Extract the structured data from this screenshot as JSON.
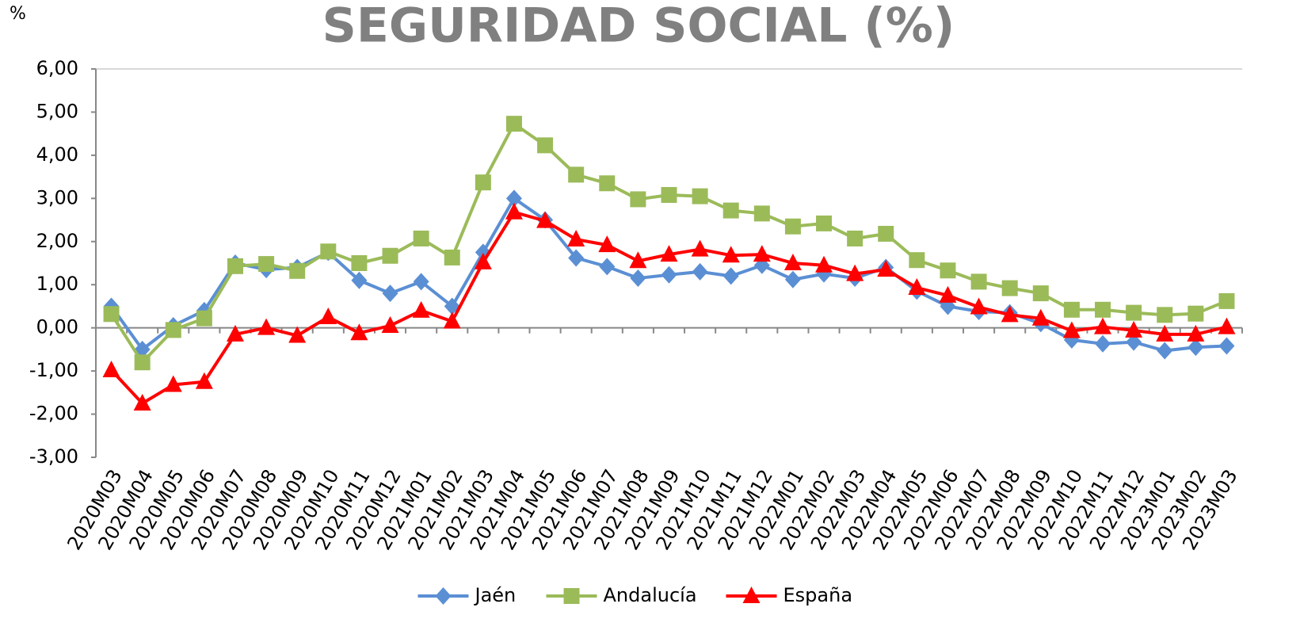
{
  "chart_data": {
    "type": "line",
    "title": "SEGURIDAD SOCIAL (%)",
    "y_label": "%",
    "categories": [
      "2020M03",
      "2020M04",
      "2020M05",
      "2020M06",
      "2020M07",
      "2020M08",
      "2020M09",
      "2020M10",
      "2020M11",
      "2020M12",
      "2021M01",
      "2021M02",
      "2021M03",
      "2021M04",
      "2021M05",
      "2021M06",
      "2021M07",
      "2021M08",
      "2021M09",
      "2021M10",
      "2021M11",
      "2021M12",
      "2022M01",
      "2022M02",
      "2022M03",
      "2022M04",
      "2022M05",
      "2022M06",
      "2022M07",
      "2022M08",
      "2022M09",
      "2022M10",
      "2022M11",
      "2022M12",
      "2023M01",
      "2023M02",
      "2023M03"
    ],
    "series": [
      {
        "name": "Jaén",
        "color": "#5b8fd4",
        "marker": "diamond",
        "values": [
          0.5,
          -0.5,
          0.05,
          0.4,
          1.5,
          1.35,
          1.4,
          1.75,
          1.1,
          0.8,
          1.07,
          0.5,
          1.75,
          3.0,
          2.5,
          1.62,
          1.42,
          1.15,
          1.23,
          1.3,
          1.2,
          1.45,
          1.12,
          1.25,
          1.15,
          1.4,
          0.85,
          0.5,
          0.38,
          0.35,
          0.1,
          -0.28,
          -0.37,
          -0.33,
          -0.53,
          -0.45,
          -0.42
        ]
      },
      {
        "name": "Andalucía",
        "color": "#9bbb59",
        "marker": "square",
        "values": [
          0.32,
          -0.8,
          -0.05,
          0.22,
          1.43,
          1.48,
          1.32,
          1.77,
          1.5,
          1.67,
          2.07,
          1.63,
          3.37,
          4.73,
          4.23,
          3.55,
          3.35,
          2.98,
          3.08,
          3.05,
          2.72,
          2.65,
          2.35,
          2.42,
          2.07,
          2.18,
          1.57,
          1.33,
          1.07,
          0.92,
          0.8,
          0.42,
          0.42,
          0.35,
          0.3,
          0.33,
          0.62
        ]
      },
      {
        "name": "España",
        "color": "#ff0000",
        "marker": "triangle",
        "values": [
          -0.98,
          -1.75,
          -1.32,
          -1.25,
          -0.15,
          0.0,
          -0.18,
          0.25,
          -0.12,
          0.05,
          0.4,
          0.15,
          1.52,
          2.68,
          2.48,
          2.05,
          1.92,
          1.55,
          1.7,
          1.82,
          1.68,
          1.7,
          1.5,
          1.45,
          1.25,
          1.35,
          0.93,
          0.75,
          0.48,
          0.3,
          0.22,
          -0.07,
          0.02,
          -0.06,
          -0.15,
          -0.15,
          0.02
        ]
      }
    ],
    "ylim": [
      -3,
      6
    ],
    "yticks": [
      {
        "value": -3,
        "label": "-3,00"
      },
      {
        "value": -2,
        "label": "-2,00"
      },
      {
        "value": -1,
        "label": "-1,00"
      },
      {
        "value": 0,
        "label": "0,00"
      },
      {
        "value": 1,
        "label": "1,00"
      },
      {
        "value": 2,
        "label": "2,00"
      },
      {
        "value": 3,
        "label": "3,00"
      },
      {
        "value": 4,
        "label": "4,00"
      },
      {
        "value": 5,
        "label": "5,00"
      },
      {
        "value": 6,
        "label": "6,00"
      }
    ],
    "grid": false,
    "legend": "bottom"
  }
}
